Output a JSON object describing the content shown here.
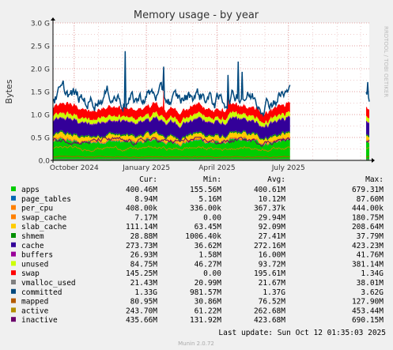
{
  "chart_data": {
    "type": "area",
    "title": "Memory usage - by year",
    "ylabel": "Bytes",
    "side_label": "RRDTOOL / TOBI OETIKER",
    "ylim": [
      0,
      3000000000.0
    ],
    "y_ticks": [
      {
        "value": 0,
        "label": "0.0"
      },
      {
        "value": 500000000.0,
        "label": "0.5 G"
      },
      {
        "value": 1000000000.0,
        "label": "1.0 G"
      },
      {
        "value": 1500000000.0,
        "label": "1.5 G"
      },
      {
        "value": 2000000000.0,
        "label": "2.0 G"
      },
      {
        "value": 2500000000.0,
        "label": "2.5 G"
      },
      {
        "value": 3000000000.0,
        "label": "3.0 G"
      }
    ],
    "x_range": [
      "2024-09-04",
      "2025-10-12"
    ],
    "x_ticks": [
      {
        "date": "2024-10-01",
        "label": "October 2024"
      },
      {
        "date": "2025-01-01",
        "label": "January 2025"
      },
      {
        "date": "2025-04-01",
        "label": "April 2025"
      },
      {
        "date": "2025-07-01",
        "label": "July 2025"
      }
    ],
    "data_gap": [
      "2025-07-03",
      "2025-10-08"
    ],
    "grid": true,
    "stack_order": [
      "apps",
      "page_tables",
      "per_cpu",
      "swap_cache",
      "slab_cache",
      "shmem",
      "cache",
      "buffers",
      "unused",
      "swap"
    ],
    "line_series": [
      "committed",
      "vmalloc_used",
      "mapped",
      "active",
      "inactive"
    ],
    "legend_headers": {
      "cur": "Cur:",
      "min": "Min:",
      "avg": "Avg:",
      "max": "Max:"
    },
    "series": [
      {
        "name": "apps",
        "color": "#00cc00",
        "cur": "400.46M",
        "min": "155.56M",
        "avg": "400.61M",
        "max": "679.31M"
      },
      {
        "name": "page_tables",
        "color": "#0066b3",
        "cur": "8.94M",
        "min": "5.16M",
        "avg": "10.12M",
        "max": "87.60M"
      },
      {
        "name": "per_cpu",
        "color": "#ff8000",
        "cur": "408.00k",
        "min": "336.00k",
        "avg": "367.37k",
        "max": "444.00k"
      },
      {
        "name": "swap_cache",
        "color": "#ff8000",
        "cur": "7.17M",
        "min": "0.00",
        "avg": "29.94M",
        "max": "180.75M"
      },
      {
        "name": "slab_cache",
        "color": "#ffcc00",
        "cur": "111.14M",
        "min": "63.45M",
        "avg": "92.09M",
        "max": "208.64M"
      },
      {
        "name": "shmem",
        "color": "#008f00",
        "cur": "28.88M",
        "min": "1006.40k",
        "avg": "27.41M",
        "max": "37.79M"
      },
      {
        "name": "cache",
        "color": "#330099",
        "cur": "273.73M",
        "min": "36.62M",
        "avg": "272.16M",
        "max": "423.23M"
      },
      {
        "name": "buffers",
        "color": "#990099",
        "cur": "26.93M",
        "min": "1.58M",
        "avg": "16.00M",
        "max": "41.76M"
      },
      {
        "name": "unused",
        "color": "#ccff00",
        "cur": "84.75M",
        "min": "46.27M",
        "avg": "93.72M",
        "max": "381.14M"
      },
      {
        "name": "swap",
        "color": "#ff0000",
        "cur": "145.25M",
        "min": "0.00",
        "avg": "195.61M",
        "max": "1.34G"
      },
      {
        "name": "vmalloc_used",
        "color": "#808080",
        "cur": "21.43M",
        "min": "20.99M",
        "avg": "21.67M",
        "max": "38.01M"
      },
      {
        "name": "committed",
        "color": "#00487d",
        "cur": "1.33G",
        "min": "981.57M",
        "avg": "1.37G",
        "max": "3.62G"
      },
      {
        "name": "mapped",
        "color": "#b35a00",
        "cur": "80.95M",
        "min": "30.86M",
        "avg": "76.52M",
        "max": "127.90M"
      },
      {
        "name": "active",
        "color": "#b38f00",
        "cur": "243.70M",
        "min": "61.22M",
        "avg": "262.68M",
        "max": "453.44M"
      },
      {
        "name": "inactive",
        "color": "#6b006b",
        "cur": "435.66M",
        "min": "131.92M",
        "avg": "423.68M",
        "max": "690.15M"
      }
    ],
    "last_update": "Last update: Sun Oct 12 01:35:03 2025",
    "footer": "Munin 2.0.72"
  }
}
